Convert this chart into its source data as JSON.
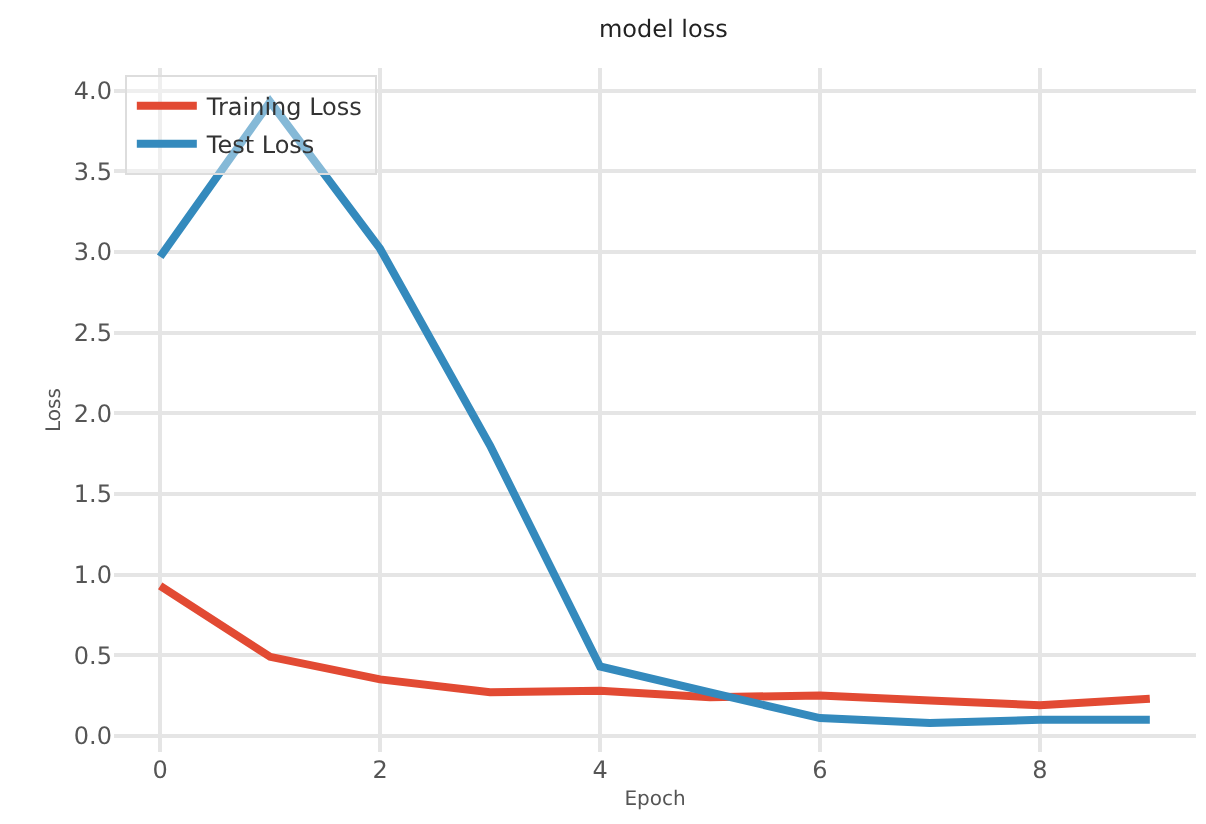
{
  "chart_data": {
    "type": "line",
    "title": "model loss",
    "xlabel": "Epoch",
    "ylabel": "Loss",
    "x": [
      0,
      1,
      2,
      3,
      4,
      5,
      6,
      7,
      8,
      9
    ],
    "series": [
      {
        "name": "Training Loss",
        "color": "#e24a33",
        "values": [
          0.93,
          0.49,
          0.35,
          0.27,
          0.28,
          0.24,
          0.25,
          0.22,
          0.19,
          0.23
        ]
      },
      {
        "name": "Test Loss",
        "color": "#348abd",
        "values": [
          2.97,
          3.93,
          3.02,
          1.8,
          0.43,
          0.27,
          0.11,
          0.08,
          0.1,
          0.1
        ]
      }
    ],
    "xlim": [
      -0.42,
      9.42
    ],
    "xticks": [
      0,
      2,
      4,
      6,
      8
    ],
    "ylim": [
      -0.1,
      4.14
    ],
    "yticks": [
      {
        "value": 0,
        "label": "0.0"
      },
      {
        "value": 0.5,
        "label": "0.5"
      },
      {
        "value": 1,
        "label": "1.0"
      },
      {
        "value": 1.5,
        "label": "1.5"
      },
      {
        "value": 2,
        "label": "2.0"
      },
      {
        "value": 2.5,
        "label": "2.5"
      },
      {
        "value": 3,
        "label": "3.0"
      },
      {
        "value": 3.5,
        "label": "3.5"
      },
      {
        "value": 4,
        "label": "4.0"
      }
    ],
    "grid": true,
    "legend": "top left",
    "marker": "none",
    "line_style": "solid"
  }
}
